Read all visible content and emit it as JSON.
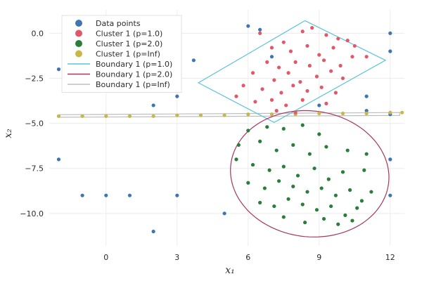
{
  "chart_data": {
    "type": "scatter",
    "title": "",
    "xlabel": "x₁",
    "ylabel": "x₂",
    "xlim": [
      -2.4,
      12.6
    ],
    "ylim": [
      -11.8,
      1.3
    ],
    "xticks": [
      0,
      3,
      6,
      9,
      12
    ],
    "yticks": [
      0.0,
      -2.5,
      -5.0,
      -7.5,
      -10.0
    ],
    "xtick_labels": [
      "0",
      "3",
      "6",
      "9",
      "12"
    ],
    "ytick_labels": [
      "0.0",
      "−2.5",
      "−5.0",
      "−7.5",
      "−10.0"
    ],
    "grid": true,
    "legend_position": "top-left",
    "series": [
      {
        "name": "Data points",
        "kind": "points",
        "color": "#3f75b0",
        "points": [
          [
            -2,
            -2
          ],
          [
            -2,
            -7
          ],
          [
            -1,
            -9
          ],
          [
            0,
            -9
          ],
          [
            1,
            -9
          ],
          [
            2,
            -4
          ],
          [
            2,
            -11
          ],
          [
            3,
            -3.5
          ],
          [
            3,
            -9
          ],
          [
            3.7,
            -1.5
          ],
          [
            5,
            -10
          ],
          [
            6,
            0.4
          ],
          [
            6.5,
            0.2
          ],
          [
            7,
            -1.3
          ],
          [
            9,
            -4
          ],
          [
            11,
            -3.5
          ],
          [
            11,
            -4.3
          ],
          [
            12,
            0
          ],
          [
            12,
            -1
          ],
          [
            12,
            -4.5
          ],
          [
            12,
            -7
          ],
          [
            12,
            -9
          ]
        ]
      },
      {
        "name": "Cluster 1 (p=1.0)",
        "kind": "points",
        "color": "#e0596a",
        "points": [
          [
            6.5,
            0
          ],
          [
            7.5,
            -0.5
          ],
          [
            8.3,
            0.1
          ],
          [
            8.7,
            0.3
          ],
          [
            9.3,
            -0.1
          ],
          [
            9.8,
            -0.3
          ],
          [
            10.2,
            -0.4
          ],
          [
            7,
            -0.8
          ],
          [
            7.8,
            -1
          ],
          [
            8.5,
            -0.7
          ],
          [
            9,
            -1.2
          ],
          [
            9.6,
            -0.8
          ],
          [
            10.5,
            -0.7
          ],
          [
            11,
            -1.3
          ],
          [
            6.8,
            -1.6
          ],
          [
            7.3,
            -1.9
          ],
          [
            8,
            -1.6
          ],
          [
            8.6,
            -1.8
          ],
          [
            9.2,
            -1.5
          ],
          [
            9.9,
            -1.8
          ],
          [
            10.4,
            -1.3
          ],
          [
            6.2,
            -2.2
          ],
          [
            7.1,
            -2.6
          ],
          [
            7.7,
            -2.2
          ],
          [
            8.2,
            -2.7
          ],
          [
            8.9,
            -2.4
          ],
          [
            9.5,
            -2.1
          ],
          [
            10,
            -2.5
          ],
          [
            5.8,
            -2.9
          ],
          [
            6.6,
            -3.1
          ],
          [
            7.4,
            -3.3
          ],
          [
            7.9,
            -2.9
          ],
          [
            8.5,
            -3.2
          ],
          [
            9.1,
            -3
          ],
          [
            9.7,
            -3.3
          ],
          [
            5.5,
            -3.5
          ],
          [
            6.3,
            -3.8
          ],
          [
            7,
            -3.7
          ],
          [
            7.6,
            -4
          ],
          [
            8.3,
            -3.7
          ],
          [
            9.3,
            -3.9
          ],
          [
            7.2,
            -4.3
          ],
          [
            8,
            -4.4
          ]
        ]
      },
      {
        "name": "Cluster 1 (p=2.0)",
        "kind": "points",
        "color": "#2b7d3a",
        "points": [
          [
            6,
            -5.4
          ],
          [
            6.8,
            -5.2
          ],
          [
            7.5,
            -5.3
          ],
          [
            8.3,
            -5.1
          ],
          [
            9,
            -5.6
          ],
          [
            5.6,
            -6.2
          ],
          [
            6.5,
            -6
          ],
          [
            7.2,
            -6.5
          ],
          [
            7.9,
            -6.2
          ],
          [
            8.6,
            -6.7
          ],
          [
            9.3,
            -6.3
          ],
          [
            5.5,
            -7
          ],
          [
            6.2,
            -7.3
          ],
          [
            6.9,
            -7.6
          ],
          [
            7.5,
            -7.4
          ],
          [
            8.1,
            -7.9
          ],
          [
            8.8,
            -7.5
          ],
          [
            9.4,
            -8.1
          ],
          [
            10,
            -7.7
          ],
          [
            6,
            -8.3
          ],
          [
            6.7,
            -8.6
          ],
          [
            7.3,
            -8.2
          ],
          [
            7.9,
            -8.5
          ],
          [
            8.5,
            -8.8
          ],
          [
            9.1,
            -8.6
          ],
          [
            9.7,
            -9
          ],
          [
            10.3,
            -8.7
          ],
          [
            10.8,
            -9.3
          ],
          [
            6.5,
            -9.4
          ],
          [
            7.1,
            -9.6
          ],
          [
            7.7,
            -9.2
          ],
          [
            8.3,
            -9.5
          ],
          [
            8.9,
            -9.8
          ],
          [
            9.5,
            -9.6
          ],
          [
            10.1,
            -10.1
          ],
          [
            10.6,
            -9.7
          ],
          [
            7.5,
            -10.2
          ],
          [
            8.4,
            -10.5
          ],
          [
            9.2,
            -10.3
          ],
          [
            9.8,
            -10.6
          ],
          [
            10.4,
            -10.4
          ],
          [
            11.2,
            -8.8
          ],
          [
            10.9,
            -7.6
          ],
          [
            11,
            -6.7
          ],
          [
            10.2,
            -6.5
          ]
        ]
      },
      {
        "name": "Cluster 1 (p=Inf)",
        "kind": "points",
        "color": "#c7b74b",
        "points": [
          [
            -2,
            -4.6
          ],
          [
            -1,
            -4.6
          ],
          [
            0,
            -4.6
          ],
          [
            1,
            -4.6
          ],
          [
            2,
            -4.6
          ],
          [
            3,
            -4.55
          ],
          [
            4,
            -4.55
          ],
          [
            5,
            -4.55
          ],
          [
            6,
            -4.5
          ],
          [
            7,
            -4.5
          ],
          [
            8,
            -4.5
          ],
          [
            9,
            -4.45
          ],
          [
            10,
            -4.45
          ],
          [
            11,
            -4.45
          ],
          [
            12,
            -4.4
          ],
          [
            12.5,
            -4.4
          ]
        ]
      },
      {
        "name": "Boundary 1 (p=1.0)",
        "kind": "line",
        "color": "#5bc4dc",
        "points": [
          [
            8.4,
            0.7
          ],
          [
            11.8,
            -1.5
          ],
          [
            7.1,
            -4.95
          ],
          [
            3.9,
            -2.75
          ],
          [
            8.4,
            0.7
          ]
        ]
      },
      {
        "name": "Boundary 1 (p=2.0)",
        "kind": "ellipse",
        "color": "#a83560",
        "center": [
          8.6,
          -7.8
        ],
        "radius_x": 3.3,
        "radius_y": 3.55,
        "rotation_deg": 25
      },
      {
        "name": "Boundary 1 (p=Inf)",
        "kind": "line",
        "color": "#bdbdbd",
        "points": [
          [
            -2,
            -4.52
          ],
          [
            12.4,
            -4.4
          ],
          [
            12.4,
            -4.56
          ],
          [
            -2,
            -4.66
          ],
          [
            -2,
            -4.52
          ]
        ]
      }
    ]
  }
}
